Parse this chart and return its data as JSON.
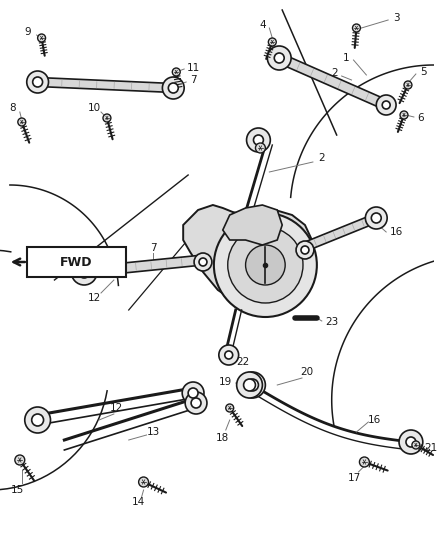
{
  "bg_color": "#ffffff",
  "line_color": "#1a1a1a",
  "leader_color": "#777777",
  "fig_width": 4.38,
  "fig_height": 5.33,
  "dpi": 100,
  "fwd_text": "FWD"
}
